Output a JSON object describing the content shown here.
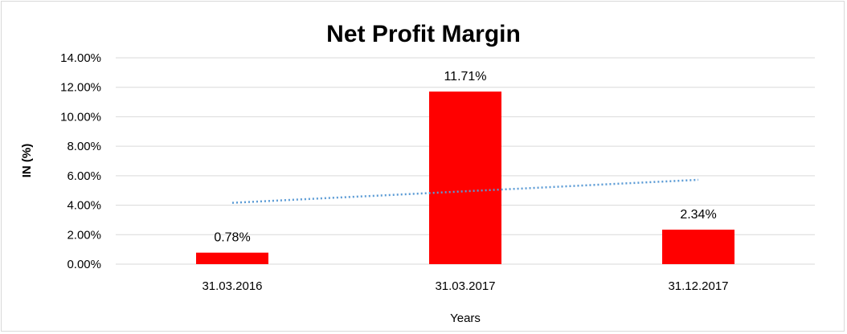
{
  "chart_data": {
    "type": "bar",
    "title": "Net Profit Margin",
    "xlabel": "Years",
    "ylabel": "IN (%)",
    "categories": [
      "31.03.2016",
      "31.03.2017",
      "31.12.2017"
    ],
    "values": [
      0.78,
      11.71,
      2.34
    ],
    "data_labels": [
      "0.78%",
      "11.71%",
      "2.34%"
    ],
    "ylim": [
      0,
      14
    ],
    "yticks": [
      "0.00%",
      "2.00%",
      "4.00%",
      "6.00%",
      "8.00%",
      "10.00%",
      "12.00%",
      "14.00%"
    ],
    "trendline": {
      "type": "linear",
      "style": "dotted"
    },
    "grid": true,
    "legend": "none",
    "colors": {
      "bar": "#ff0000",
      "trendline": "#5b9bd5",
      "grid": "#d9d9d9",
      "border": "#d9d9d9"
    }
  }
}
